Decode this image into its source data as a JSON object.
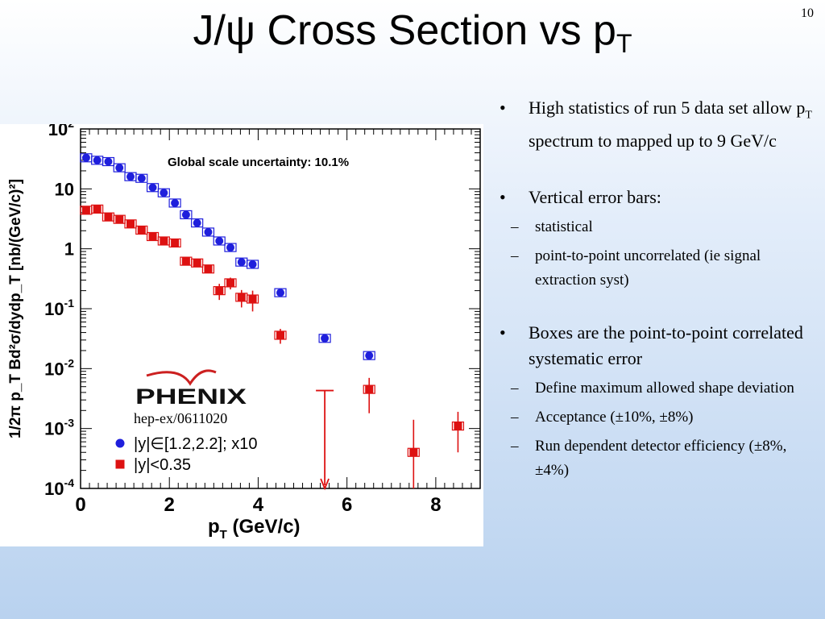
{
  "slide": {
    "number": "10",
    "title_main": "J/ψ Cross Section vs p",
    "title_sub": "T"
  },
  "bullets": [
    {
      "text_before": "High statistics of run 5 data set allow p",
      "sub": "T",
      "text_after": " spectrum to mapped up to 9 GeV/c"
    },
    {
      "text": "Vertical error bars:",
      "items": [
        "statistical",
        "point-to-point uncorrelated (ie signal extraction syst)"
      ]
    },
    {
      "text": "Boxes are the point-to-point correlated systematic error",
      "items": [
        "Define maximum allowed shape deviation",
        "Acceptance (±10%, ±8%)",
        "Run dependent detector efficiency (±8%, ±4%)"
      ]
    }
  ],
  "chart_data": {
    "type": "scatter",
    "xlabel_main": "p",
    "xlabel_sub": "T",
    "xlabel_unit": " (GeV/c)",
    "ylabel": "1/2π p_T Bd²σ/dydp_T [nb/(GeV/c)²]",
    "xlim": [
      0,
      9
    ],
    "ylim": [
      0.0001,
      100
    ],
    "y_scale": "log",
    "x_ticks": [
      "0",
      "2",
      "4",
      "6",
      "8"
    ],
    "y_ticks": [
      {
        "base": "10",
        "exp": "2",
        "value": 100
      },
      {
        "base": "10",
        "exp": "",
        "value": 10
      },
      {
        "base": "1",
        "exp": "",
        "value": 1
      },
      {
        "base": "10",
        "exp": "-1",
        "value": 0.1
      },
      {
        "base": "10",
        "exp": "-2",
        "value": 0.01
      },
      {
        "base": "10",
        "exp": "-3",
        "value": 0.001
      },
      {
        "base": "10",
        "exp": "-4",
        "value": 0.0001
      }
    ],
    "annotation": "Global scale uncertainty: 10.1%",
    "logo_text": "PHENIX",
    "reference": "hep-ex/0611020",
    "legend_placement": "bottom-left",
    "series": [
      {
        "name": "|y|∈[1.2,2.2]; x10",
        "color": "#1f1fdc",
        "marker": "circle",
        "points": [
          {
            "x": 0.125,
            "y": 33
          },
          {
            "x": 0.375,
            "y": 30
          },
          {
            "x": 0.625,
            "y": 28.5
          },
          {
            "x": 0.875,
            "y": 22.5
          },
          {
            "x": 1.125,
            "y": 16
          },
          {
            "x": 1.375,
            "y": 15
          },
          {
            "x": 1.625,
            "y": 10.5
          },
          {
            "x": 1.875,
            "y": 8.6
          },
          {
            "x": 2.125,
            "y": 5.8
          },
          {
            "x": 2.375,
            "y": 3.7
          },
          {
            "x": 2.625,
            "y": 2.7
          },
          {
            "x": 2.875,
            "y": 1.9
          },
          {
            "x": 3.125,
            "y": 1.35
          },
          {
            "x": 3.375,
            "y": 1.05
          },
          {
            "x": 3.625,
            "y": 0.6
          },
          {
            "x": 3.875,
            "y": 0.55
          },
          {
            "x": 4.5,
            "y": 0.185
          },
          {
            "x": 5.5,
            "y": 0.032
          },
          {
            "x": 6.5,
            "y": 0.0165
          }
        ]
      },
      {
        "name": "|y|<0.35",
        "color": "#dd1111",
        "marker": "square",
        "points": [
          {
            "x": 0.125,
            "y": 4.4,
            "elo": 0.4,
            "ehi": 0.4
          },
          {
            "x": 0.375,
            "y": 4.6,
            "elo": 0.4,
            "ehi": 0.4
          },
          {
            "x": 0.625,
            "y": 3.4,
            "elo": 0.3,
            "ehi": 0.3
          },
          {
            "x": 0.875,
            "y": 3.1,
            "elo": 0.3,
            "ehi": 0.3
          },
          {
            "x": 1.125,
            "y": 2.6,
            "elo": 0.25,
            "ehi": 0.25
          },
          {
            "x": 1.375,
            "y": 2.05,
            "elo": 0.2,
            "ehi": 0.2
          },
          {
            "x": 1.625,
            "y": 1.6,
            "elo": 0.15,
            "ehi": 0.15
          },
          {
            "x": 1.875,
            "y": 1.35,
            "elo": 0.15,
            "ehi": 0.15
          },
          {
            "x": 2.125,
            "y": 1.25,
            "elo": 0.12,
            "ehi": 0.12
          },
          {
            "x": 2.375,
            "y": 0.62,
            "elo": 0.07,
            "ehi": 0.07
          },
          {
            "x": 2.625,
            "y": 0.58,
            "elo": 0.07,
            "ehi": 0.07
          },
          {
            "x": 2.875,
            "y": 0.46,
            "elo": 0.07,
            "ehi": 0.07
          },
          {
            "x": 3.125,
            "y": 0.2,
            "elo": 0.06,
            "ehi": 0.06
          },
          {
            "x": 3.375,
            "y": 0.27,
            "elo": 0.06,
            "ehi": 0.06
          },
          {
            "x": 3.625,
            "y": 0.155,
            "elo": 0.05,
            "ehi": 0.05
          },
          {
            "x": 3.875,
            "y": 0.145,
            "elo": 0.055,
            "ehi": 0.055
          },
          {
            "x": 4.5,
            "y": 0.036,
            "elo": 0.01,
            "ehi": 0.01
          },
          {
            "x": 6.5,
            "y": 0.0045,
            "elo": 0.0027,
            "ehi": 0.0025
          },
          {
            "x": 7.5,
            "y": 0.0004,
            "elo": 0.0003,
            "ehi": 0.001
          },
          {
            "x": 8.5,
            "y": 0.0011,
            "elo": 0.0007,
            "ehi": 0.0008
          }
        ]
      }
    ],
    "upper_limit": {
      "x": 5.5,
      "y_top": 0.0043,
      "y_bottom": 0.0001,
      "color": "#dd1111"
    }
  }
}
